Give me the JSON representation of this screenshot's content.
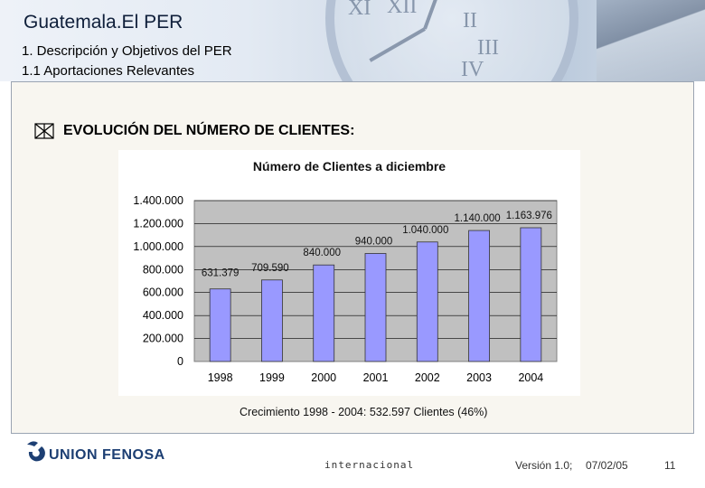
{
  "header": {
    "title": "Guatemala.El PER",
    "subtitle_1": "1. Descripción y Objetivos del PER",
    "subtitle_2": "1.1 Aportaciones Relevantes"
  },
  "section_title": "EVOLUCIÓN DEL NÚMERO DE CLIENTES:",
  "growth_note": "Crecimiento 1998 - 2004: 532.597 Clientes (46%)",
  "footer": {
    "brand": "UNION FENOSA",
    "international": "internacional",
    "version": "Versión 1.0;",
    "date": "07/02/05",
    "page": "11"
  },
  "colors": {
    "bar_fill": "#9999ff",
    "plot_bg": "#c0c0c0",
    "brand": "#1d3f73"
  },
  "chart_data": {
    "type": "bar",
    "title": "Número de Clientes a diciembre",
    "categories": [
      "1998",
      "1999",
      "2000",
      "2001",
      "2002",
      "2003",
      "2004"
    ],
    "values": [
      631379,
      709590,
      840000,
      940000,
      1040000,
      1140000,
      1163976
    ],
    "data_labels": [
      "631.379",
      "709.590",
      "840.000",
      "940.000",
      "1.040.000",
      "1.140.000",
      "1.163.976"
    ],
    "ylim": [
      0,
      1400000
    ],
    "yticks": [
      0,
      200000,
      400000,
      600000,
      800000,
      1000000,
      1200000,
      1400000
    ],
    "ytick_labels": [
      "0",
      "200.000",
      "400.000",
      "600.000",
      "800.000",
      "1.000.000",
      "1.200.000",
      "1.400.000"
    ],
    "grid": true,
    "legend": "none"
  }
}
